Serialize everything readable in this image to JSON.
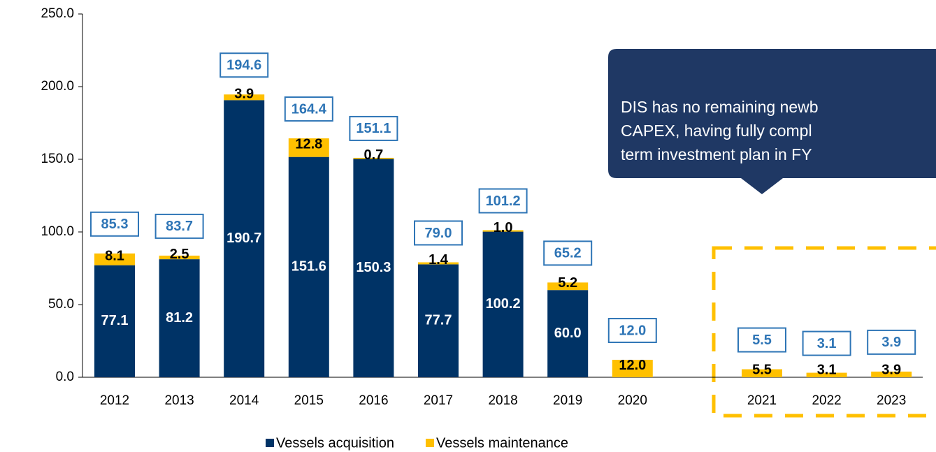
{
  "chart_data": {
    "type": "stacked_bar",
    "categories": [
      "2012",
      "2013",
      "2014",
      "2015",
      "2016",
      "2017",
      "2018",
      "2019",
      "2020",
      null,
      "2021",
      "2022",
      "2023"
    ],
    "series": [
      {
        "name": "Vessels acquisition",
        "color": "#003366",
        "values": [
          77.1,
          81.2,
          190.7,
          151.6,
          150.3,
          77.7,
          100.2,
          60.0,
          null,
          null,
          null,
          null,
          null
        ],
        "value_labels": [
          "77.1",
          "81.2",
          "190.7",
          "151.6",
          "150.3",
          "77.7",
          "100.2",
          "60.0",
          null,
          null,
          null,
          null,
          null
        ]
      },
      {
        "name": "Vessels maintenance",
        "color": "#ffc000",
        "values": [
          8.1,
          2.5,
          3.9,
          12.8,
          0.7,
          1.4,
          1.0,
          5.2,
          12.0,
          null,
          5.5,
          3.1,
          3.9
        ],
        "value_labels": [
          "8.1",
          "2.5",
          "3.9",
          "12.8",
          "0.7",
          "1.4",
          "1.0",
          "5.2",
          "12.0",
          null,
          "5.5",
          "3.1",
          "3.9"
        ]
      }
    ],
    "totals": [
      "85.3",
      "83.7",
      "194.6",
      "164.4",
      "151.1",
      "79.0",
      "101.2",
      "65.2",
      "12.0",
      null,
      "5.5",
      "3.1",
      "3.9"
    ],
    "ylim": [
      0,
      250
    ],
    "yticks": [
      {
        "value": 0,
        "label": "0.0"
      },
      {
        "value": 50,
        "label": "50.0"
      },
      {
        "value": 100,
        "label": "100.0"
      },
      {
        "value": 150,
        "label": "150.0"
      },
      {
        "value": 200,
        "label": "200.0"
      },
      {
        "value": 250,
        "label": "250.0"
      }
    ],
    "annotation": [
      "DIS has no remaining newb",
      "CAPEX, having fully compl",
      "term investment plan in FY"
    ],
    "legend": "bottom"
  }
}
